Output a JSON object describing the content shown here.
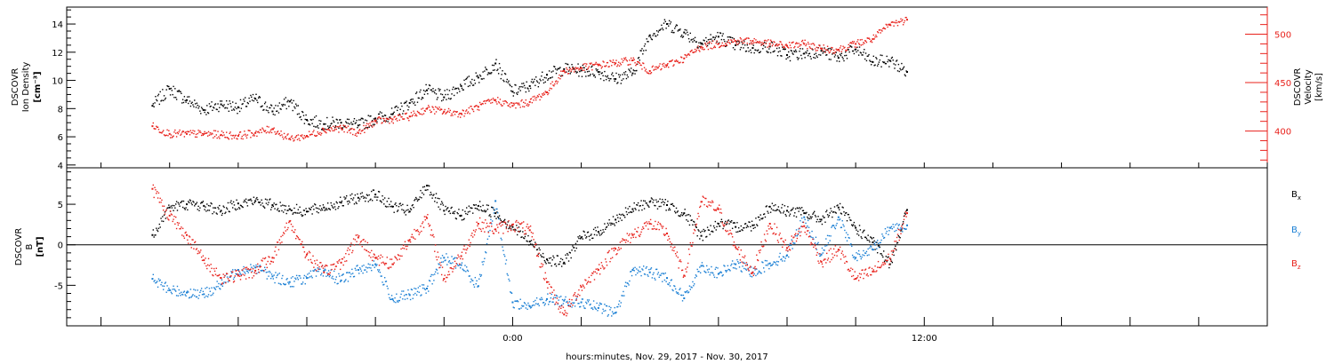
{
  "chart_data": [
    {
      "type": "scatter",
      "panel": "top",
      "ylabel_left": [
        "DSCOVR",
        "Ion Density",
        "[cm⁻³]"
      ],
      "ylabel_right": [
        "DSCOVR",
        "Velocity",
        "[km/s]"
      ],
      "ylim_left": [
        3.8,
        15.2
      ],
      "ylim_right": [
        362,
        528
      ],
      "left_ticks": [
        {
          "value": 4,
          "label": "4"
        },
        {
          "value": 6,
          "label": "6"
        },
        {
          "value": 8,
          "label": "8"
        },
        {
          "value": 10,
          "label": "10"
        },
        {
          "value": 12,
          "label": "12"
        },
        {
          "value": 14,
          "label": "14"
        }
      ],
      "right_ticks": [
        {
          "value": 400,
          "label": "400"
        },
        {
          "value": 450,
          "label": "450"
        },
        {
          "value": 500,
          "label": "500"
        }
      ],
      "series": [
        {
          "name": "Ion Density",
          "axis": "left",
          "color": "#000000",
          "x": [
            -10.5,
            -10.0,
            -9.5,
            -9.0,
            -8.5,
            -8.0,
            -7.5,
            -7.0,
            -6.5,
            -6.0,
            -5.5,
            -5.0,
            -4.5,
            -4.0,
            -3.5,
            -3.0,
            -2.5,
            -2.0,
            -1.5,
            -1.0,
            -0.5,
            0.0,
            0.5,
            1.0,
            1.5,
            2.0,
            2.5,
            3.0,
            3.5,
            4.0,
            4.5,
            5.0,
            5.5,
            6.0,
            6.5,
            7.0,
            7.5,
            8.0,
            8.5,
            9.0,
            9.5,
            10.0,
            10.5,
            11.0,
            11.5
          ],
          "values": [
            8.2,
            9.4,
            8.6,
            7.9,
            8.3,
            8.1,
            8.7,
            7.8,
            8.5,
            7.2,
            6.9,
            7.0,
            6.8,
            7.3,
            7.6,
            8.4,
            9.3,
            8.8,
            9.6,
            10.2,
            11.2,
            9.2,
            9.6,
            10.4,
            10.8,
            10.7,
            10.6,
            10.1,
            10.5,
            13.2,
            14.0,
            13.4,
            12.6,
            13.1,
            12.5,
            12.3,
            12.4,
            11.8,
            11.9,
            12.1,
            11.6,
            12.2,
            11.3,
            11.4,
            10.6
          ]
        },
        {
          "name": "Velocity",
          "axis": "right",
          "color": "#e8211b",
          "x": [
            -10.5,
            -10.0,
            -9.5,
            -9.0,
            -8.5,
            -8.0,
            -7.5,
            -7.0,
            -6.5,
            -6.0,
            -5.5,
            -5.0,
            -4.5,
            -4.0,
            -3.5,
            -3.0,
            -2.5,
            -2.0,
            -1.5,
            -1.0,
            -0.5,
            0.0,
            0.5,
            1.0,
            1.5,
            2.0,
            2.5,
            3.0,
            3.5,
            4.0,
            4.5,
            5.0,
            5.5,
            6.0,
            6.5,
            7.0,
            7.5,
            8.0,
            8.5,
            9.0,
            9.5,
            10.0,
            10.5,
            11.0,
            11.5
          ],
          "values": [
            405,
            397,
            397,
            397,
            396,
            395,
            398,
            402,
            392,
            395,
            401,
            403,
            398,
            410,
            412,
            415,
            423,
            420,
            418,
            425,
            432,
            426,
            430,
            440,
            462,
            465,
            468,
            470,
            473,
            462,
            468,
            475,
            487,
            490,
            493,
            493,
            490,
            488,
            490,
            485,
            484,
            490,
            495,
            510,
            515
          ]
        }
      ]
    },
    {
      "type": "scatter",
      "panel": "bottom",
      "ylabel_left": [
        "DSCOVR",
        "B",
        "[nT]"
      ],
      "ylim": [
        -10,
        9.5
      ],
      "zero_line": true,
      "left_ticks": [
        {
          "value": -5,
          "label": "-5"
        },
        {
          "value": 0,
          "label": "0"
        },
        {
          "value": 5,
          "label": "5"
        }
      ],
      "legend": [
        {
          "name": "Bx",
          "main": "B",
          "sub": "x",
          "color": "#000000"
        },
        {
          "name": "By",
          "main": "B",
          "sub": "y",
          "color": "#1a7fd4"
        },
        {
          "name": "Bz",
          "main": "B",
          "sub": "z",
          "color": "#e8211b"
        }
      ],
      "series": [
        {
          "name": "Bx",
          "color": "#000000",
          "x": [
            -10.5,
            -10.0,
            -9.5,
            -9.0,
            -8.5,
            -8.0,
            -7.5,
            -7.0,
            -6.5,
            -6.0,
            -5.5,
            -5.0,
            -4.5,
            -4.0,
            -3.5,
            -3.0,
            -2.5,
            -2.0,
            -1.5,
            -1.0,
            -0.5,
            0.0,
            0.5,
            1.0,
            1.5,
            2.0,
            2.5,
            3.0,
            3.5,
            4.0,
            4.5,
            5.0,
            5.5,
            6.0,
            6.5,
            7.0,
            7.5,
            8.0,
            8.5,
            9.0,
            9.5,
            10.0,
            10.5,
            11.0,
            11.5
          ],
          "values": [
            1.2,
            4.6,
            5.0,
            4.8,
            4.2,
            5.1,
            5.4,
            4.9,
            4.4,
            4.1,
            4.6,
            5.2,
            5.8,
            6.2,
            4.7,
            4.1,
            7.3,
            4.2,
            3.6,
            4.8,
            3.9,
            2.2,
            0.4,
            -1.8,
            -2.2,
            0.9,
            1.6,
            3.1,
            4.4,
            5.3,
            4.9,
            3.9,
            1.1,
            2.6,
            2.2,
            2.4,
            4.7,
            4.2,
            3.9,
            3.1,
            4.6,
            2.1,
            0.3,
            -2.4,
            4.3
          ]
        },
        {
          "name": "By",
          "color": "#1a7fd4",
          "x": [
            -10.5,
            -10.0,
            -9.5,
            -9.0,
            -8.5,
            -8.0,
            -7.5,
            -7.0,
            -6.5,
            -6.0,
            -5.5,
            -5.0,
            -4.5,
            -4.0,
            -3.5,
            -3.0,
            -2.5,
            -2.0,
            -1.5,
            -1.0,
            -0.5,
            0.0,
            0.5,
            1.0,
            1.5,
            2.0,
            2.5,
            3.0,
            3.5,
            4.0,
            4.5,
            5.0,
            5.5,
            6.0,
            6.5,
            7.0,
            7.5,
            8.0,
            8.5,
            9.0,
            9.5,
            10.0,
            10.5,
            11.0,
            11.5
          ],
          "values": [
            -4.2,
            -5.6,
            -5.9,
            -6.1,
            -4.9,
            -3.1,
            -2.8,
            -3.9,
            -4.6,
            -4.1,
            -3.2,
            -4.4,
            -3.1,
            -2.4,
            -6.7,
            -6.2,
            -5.4,
            -1.6,
            -2.5,
            -5.1,
            5.4,
            -7.1,
            -7.6,
            -6.7,
            -6.9,
            -7.1,
            -7.8,
            -8.4,
            -3.1,
            -3.4,
            -4.1,
            -6.6,
            -2.6,
            -3.6,
            -2.4,
            -3.4,
            -2.3,
            -1.3,
            3.4,
            -1.2,
            3.4,
            -1.6,
            -0.6,
            2.1,
            2.4
          ]
        },
        {
          "name": "Bz",
          "color": "#e8211b",
          "x": [
            -10.5,
            -10.0,
            -9.5,
            -9.0,
            -8.5,
            -8.0,
            -7.5,
            -7.0,
            -6.5,
            -6.0,
            -5.5,
            -5.0,
            -4.5,
            -4.0,
            -3.5,
            -3.0,
            -2.5,
            -2.0,
            -1.5,
            -1.0,
            -0.5,
            0.0,
            0.5,
            1.0,
            1.5,
            2.0,
            2.5,
            3.0,
            3.5,
            4.0,
            4.5,
            5.0,
            5.5,
            6.0,
            6.5,
            7.0,
            7.5,
            8.0,
            8.5,
            9.0,
            9.5,
            10.0,
            10.5,
            11.0,
            11.5
          ],
          "values": [
            6.9,
            3.6,
            1.2,
            -1.9,
            -4.1,
            -3.8,
            -3.2,
            -1.6,
            2.9,
            -1.2,
            -3.4,
            -2.2,
            0.9,
            -1.6,
            -2.4,
            0.6,
            3.3,
            -4.2,
            -1.4,
            2.6,
            1.9,
            2.5,
            1.8,
            -4.6,
            -8.6,
            -5.2,
            -3.1,
            -0.5,
            1.2,
            2.6,
            1.4,
            -3.8,
            5.3,
            4.4,
            -0.3,
            -3.4,
            2.6,
            -0.4,
            2.3,
            -2.1,
            -0.6,
            -4.2,
            -3.3,
            -1.7,
            3.9
          ]
        }
      ]
    }
  ],
  "x_axis": {
    "xlim": [
      -13,
      22
    ],
    "tick_labels": [
      {
        "value": 0,
        "label": "0:00"
      },
      {
        "value": 12,
        "label": "12:00"
      }
    ],
    "xlabel": "hours:minutes, Nov. 29, 2017 - Nov. 30, 2017"
  }
}
